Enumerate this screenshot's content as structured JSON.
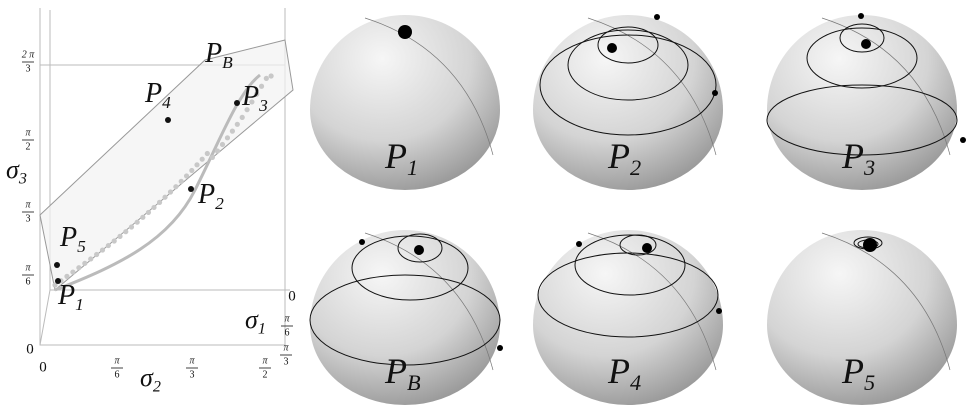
{
  "plot3d": {
    "axis_labels": {
      "z": {
        "base": "σ",
        "sub": "3"
      },
      "x": {
        "base": "σ",
        "sub": "2"
      },
      "y": {
        "base": "σ",
        "sub": "1"
      }
    },
    "z_ticks": [
      "0",
      {
        "num": "π",
        "den": "6"
      },
      {
        "num": "π",
        "den": "3"
      },
      {
        "num": "π",
        "den": "2"
      },
      {
        "num": "2 π",
        "den": "3"
      }
    ],
    "x_ticks": [
      "0",
      {
        "num": "π",
        "den": "6"
      },
      {
        "num": "π",
        "den": "3"
      },
      {
        "num": "π",
        "den": "2"
      }
    ],
    "y_ticks": [
      "0",
      {
        "num": "π",
        "den": "6"
      },
      {
        "num": "π",
        "den": "3"
      }
    ],
    "points": [
      {
        "base": "P",
        "sub": "1"
      },
      {
        "base": "P",
        "sub": "5"
      },
      {
        "base": "P",
        "sub": "2"
      },
      {
        "base": "P",
        "sub": "4"
      },
      {
        "base": "P",
        "sub": "3"
      },
      {
        "base": "P",
        "sub": "B"
      }
    ]
  },
  "spheres": [
    {
      "base": "P",
      "sub": "1"
    },
    {
      "base": "P",
      "sub": "2"
    },
    {
      "base": "P",
      "sub": "3"
    },
    {
      "base": "P",
      "sub": "B"
    },
    {
      "base": "P",
      "sub": "4"
    },
    {
      "base": "P",
      "sub": "5"
    }
  ]
}
